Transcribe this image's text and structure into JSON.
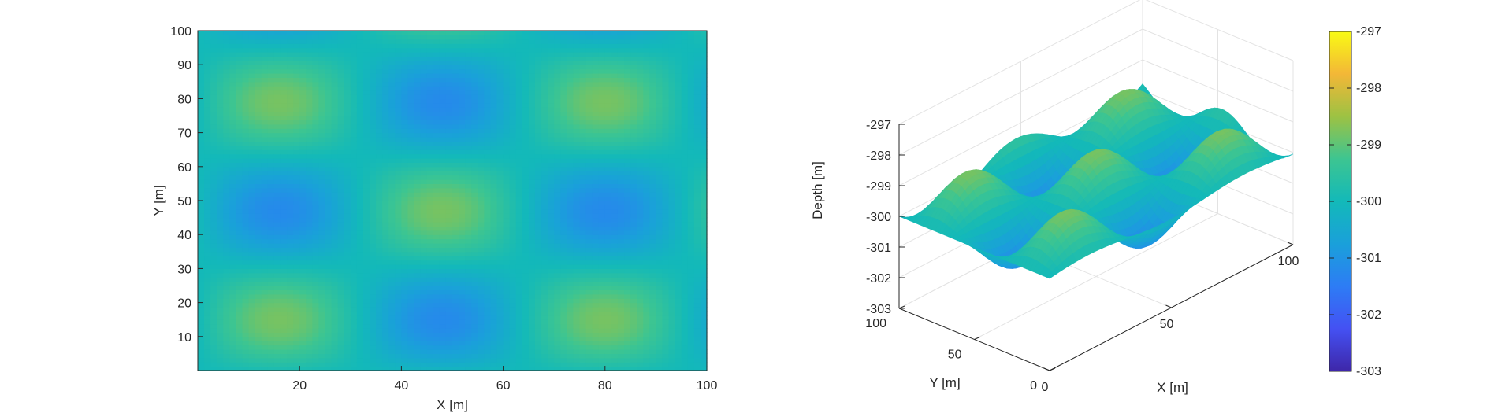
{
  "chart_data": [
    {
      "type": "heatmap",
      "xlabel": "X [m]",
      "ylabel": "Y [m]",
      "xlim": [
        0,
        100
      ],
      "ylim": [
        0,
        100
      ],
      "xticks": [
        20,
        40,
        60,
        80,
        100
      ],
      "yticks": [
        10,
        20,
        30,
        40,
        50,
        60,
        70,
        80,
        90,
        100
      ],
      "z_function": "-300 + 1.2*sin(2*pi*x/64)*cos(2*pi*(y-15)/64)",
      "colormap": "parula",
      "grid": false
    },
    {
      "type": "surface",
      "xlabel": "X [m]",
      "ylabel": "Y [m]",
      "zlabel": "Depth [m]",
      "xlim": [
        0,
        100
      ],
      "ylim": [
        0,
        100
      ],
      "zlim": [
        -303,
        -297
      ],
      "xticks": [
        0,
        50,
        100
      ],
      "yticks": [
        0,
        50,
        100
      ],
      "zticks": [
        -303,
        -302,
        -301,
        -300,
        -299,
        -298,
        -297
      ],
      "colormap": "parula",
      "grid": true
    }
  ],
  "colorbar": {
    "min": -303,
    "max": -297,
    "ticks": [
      -303,
      -302,
      -301,
      -300,
      -299,
      -298,
      -297
    ]
  }
}
